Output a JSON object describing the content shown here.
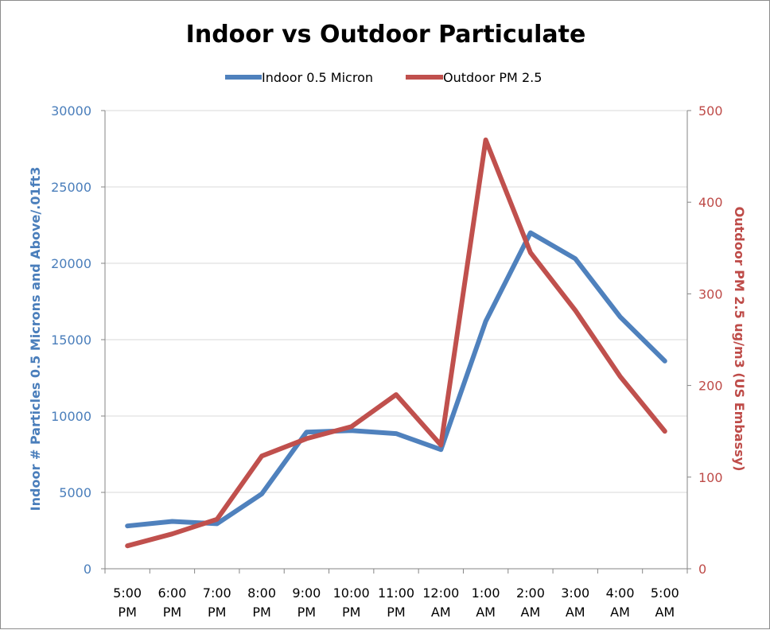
{
  "chart_data": {
    "type": "line",
    "title": "Indoor vs Outdoor Particulate",
    "categories": [
      [
        "5:00",
        "PM"
      ],
      [
        "6:00",
        "PM"
      ],
      [
        "7:00",
        "PM"
      ],
      [
        "8:00",
        "PM"
      ],
      [
        "9:00",
        "PM"
      ],
      [
        "10:00",
        "PM"
      ],
      [
        "11:00",
        "PM"
      ],
      [
        "12:00",
        "AM"
      ],
      [
        "1:00",
        "AM"
      ],
      [
        "2:00",
        "AM"
      ],
      [
        "3:00",
        "AM"
      ],
      [
        "4:00",
        "AM"
      ],
      [
        "5:00",
        "AM"
      ]
    ],
    "series": [
      {
        "name": "Indoor 0.5 Micron",
        "axis": "left",
        "color": "#4f81bd",
        "values": [
          2800,
          3100,
          2950,
          4900,
          8950,
          9050,
          8850,
          7800,
          16200,
          22000,
          20300,
          16500,
          13600
        ]
      },
      {
        "name": "Outdoor PM 2.5",
        "axis": "right",
        "color": "#c0504d",
        "values": [
          25,
          38,
          54,
          123,
          142,
          155,
          190,
          135,
          468,
          345,
          282,
          210,
          150
        ]
      }
    ],
    "y_left": {
      "label": "Indoor #  Particles 0.5 Microns and Above/.01ft3",
      "range": [
        0,
        30000
      ],
      "ticks": [
        "0",
        "5000",
        "10000",
        "15000",
        "20000",
        "25000",
        "30000"
      ]
    },
    "y_right": {
      "label": "Outdoor PM 2.5 ug/m3 (US Embassy)",
      "range": [
        0,
        500
      ],
      "ticks": [
        "0",
        "100",
        "200",
        "300",
        "400",
        "500"
      ]
    },
    "grid": true,
    "legend": "top"
  }
}
